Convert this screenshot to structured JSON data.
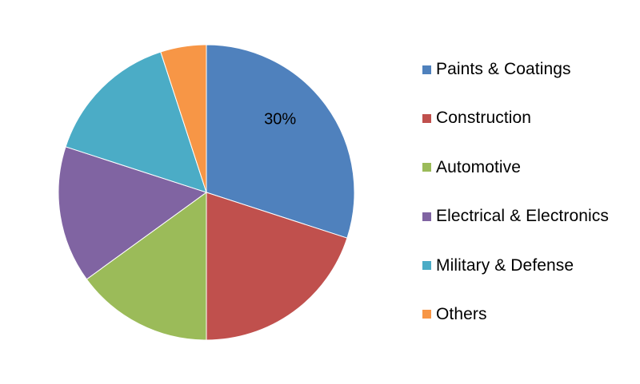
{
  "chart_data": {
    "type": "pie",
    "start_angle_deg": 0,
    "direction": "clockwise",
    "slices": [
      {
        "name": "Paints & Coatings",
        "value": 30,
        "color": "#4F81BD",
        "label": "30%"
      },
      {
        "name": "Construction",
        "value": 20,
        "color": "#C0504D",
        "label": ""
      },
      {
        "name": "Automotive",
        "value": 15,
        "color": "#9BBB59",
        "label": ""
      },
      {
        "name": "Electrical & Electronics",
        "value": 15,
        "color": "#8064A2",
        "label": ""
      },
      {
        "name": "Military & Defense",
        "value": 15,
        "color": "#4BACC6",
        "label": ""
      },
      {
        "name": "Others",
        "value": 5,
        "color": "#F79646",
        "label": ""
      }
    ],
    "legend_position": "right"
  }
}
